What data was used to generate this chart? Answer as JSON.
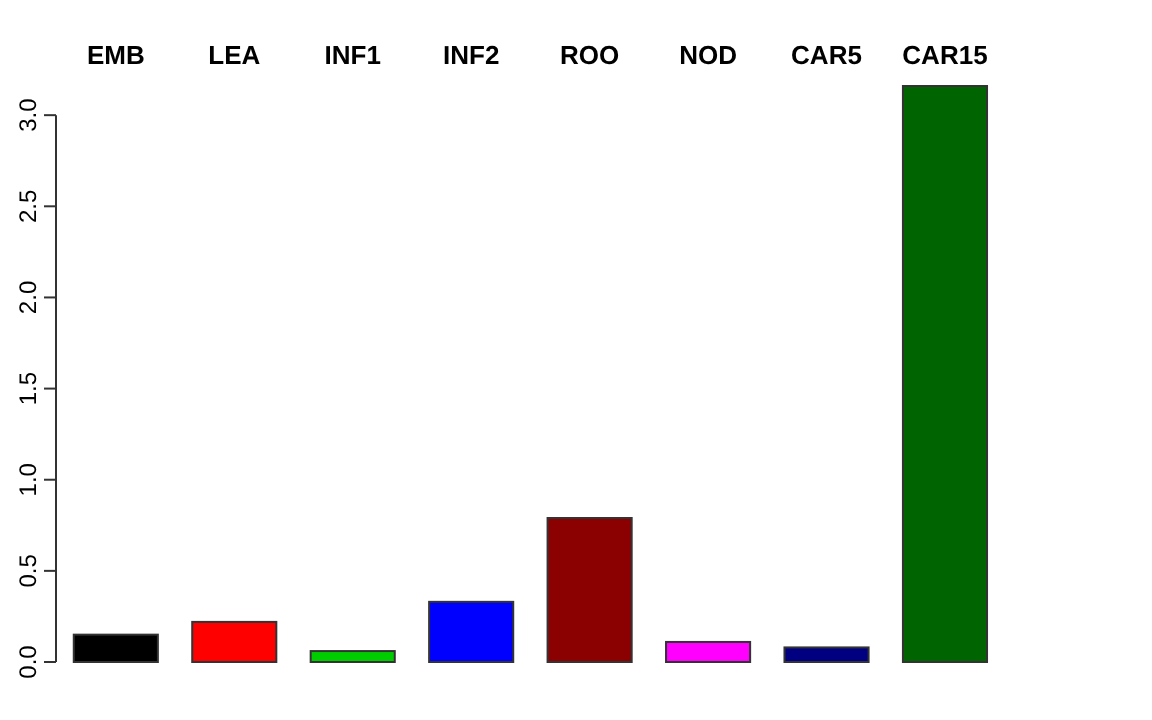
{
  "chart_data": {
    "type": "bar",
    "categories": [
      "EMB",
      "LEA",
      "INF1",
      "INF2",
      "ROO",
      "NOD",
      "CAR5",
      "CAR15"
    ],
    "values": [
      0.15,
      0.22,
      0.06,
      0.33,
      0.79,
      0.11,
      0.08,
      3.16
    ],
    "colors": [
      "#000000",
      "#ff0000",
      "#00cd00",
      "#0000ff",
      "#8b0000",
      "#ff00ff",
      "#000080",
      "#006400"
    ],
    "ylim": [
      0,
      3.16
    ],
    "yticks": [
      {
        "value": 0,
        "label": "0.0"
      },
      {
        "value": 0.5,
        "label": "0.5"
      },
      {
        "value": 1,
        "label": "1.0"
      },
      {
        "value": 1.5,
        "label": "1.5"
      },
      {
        "value": 2,
        "label": "2.0"
      },
      {
        "value": 2.5,
        "label": "2.5"
      },
      {
        "value": 3,
        "label": "3.0"
      }
    ],
    "grid": false
  }
}
